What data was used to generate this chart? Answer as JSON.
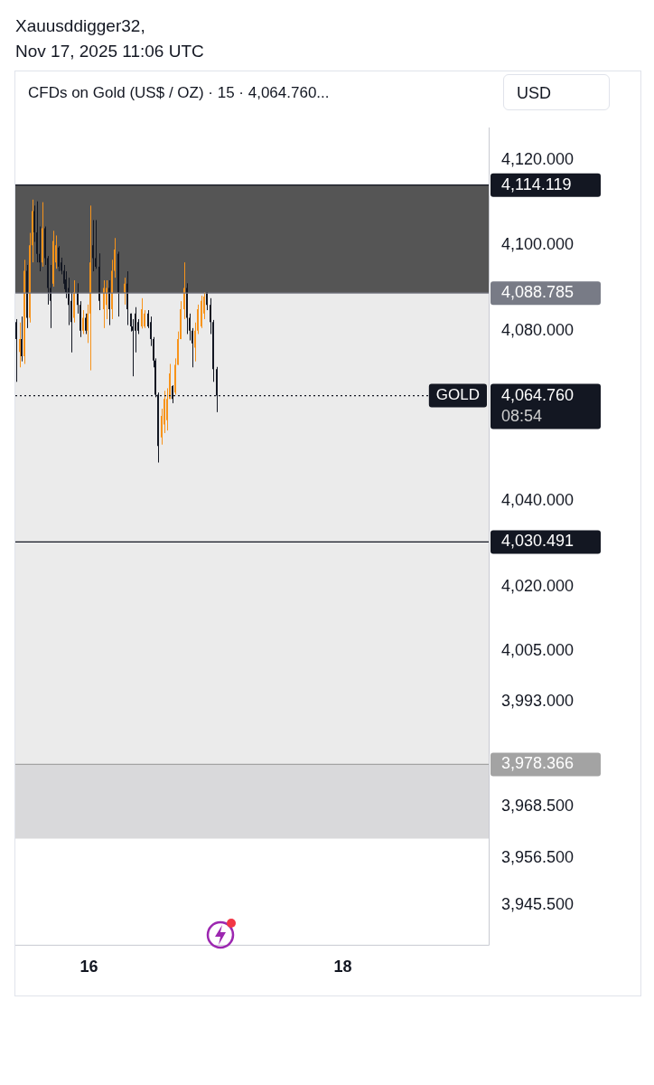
{
  "chart_data": {
    "type": "candlestick",
    "title": "CFDs on Gold (US$ / OZ) · 15 · 4,064.760...",
    "annotations": [
      "Xauusddigger32,",
      "Nov 17, 2025 11:06 UTC",
      "USD",
      "08:54",
      {
        "text": "GOLD",
        "y": 4064.76
      }
    ],
    "x": [
      15.427,
      15.455,
      15.469,
      15.49,
      15.51,
      15.531,
      15.552,
      15.573,
      15.594,
      15.615,
      15.636,
      15.657,
      15.678,
      15.699,
      15.72,
      15.741,
      15.762,
      15.783,
      15.804,
      15.818,
      15.839,
      15.86,
      15.881,
      15.909,
      15.93,
      15.951,
      15.972,
      15.993,
      16.014,
      16.035,
      16.056,
      16.084,
      16.119,
      16.14,
      16.161,
      16.182,
      16.203,
      16.231,
      16.28,
      16.301,
      16.329,
      16.343,
      16.364,
      16.385,
      16.42,
      16.441,
      16.469,
      16.49,
      16.51,
      16.524,
      16.545,
      16.573,
      16.594,
      16.615,
      16.636,
      16.657,
      16.678,
      16.699,
      16.72,
      16.748,
      16.776,
      16.797,
      16.818,
      16.839,
      16.86,
      16.888,
      16.909,
      16.93,
      16.958,
      16.979,
      17.007
    ],
    "ohlc": [
      [
        4082,
        4082.7,
        4068,
        4078
      ],
      [
        4075,
        4081.9,
        4071.4,
        4078
      ],
      [
        4078,
        4083.3,
        4072.8,
        4074
      ],
      [
        4074,
        4096.6,
        4072.2,
        4094
      ],
      [
        4094,
        4095.4,
        4080.6,
        4083
      ],
      [
        4083,
        4102.9,
        4081.9,
        4100
      ],
      [
        4100,
        4110.7,
        4096,
        4108
      ],
      [
        4108,
        4109.3,
        4100.8,
        4103
      ],
      [
        4103,
        4110.3,
        4096,
        4098
      ],
      [
        4098,
        4104.4,
        4093.9,
        4096
      ],
      [
        4096,
        4110.1,
        4095,
        4104
      ],
      [
        4104,
        4104.4,
        4095.4,
        4097
      ],
      [
        4097,
        4097.5,
        4086.1,
        4090
      ],
      [
        4090,
        4095.4,
        4080.6,
        4087
      ],
      [
        4091,
        4103.4,
        4090.3,
        4101
      ],
      [
        4096,
        4102.3,
        4094.5,
        4100
      ],
      [
        4099.5,
        4099.8,
        4093.9,
        4095
      ],
      [
        4096,
        4097.1,
        4093.2,
        4094
      ],
      [
        4094,
        4095.4,
        4089.7,
        4091
      ],
      [
        4092,
        4093.9,
        4087.6,
        4089
      ],
      [
        4090,
        4092.4,
        4081.3,
        4086
      ],
      [
        4087,
        4089,
        4074.9,
        4082
      ],
      [
        4083,
        4091.8,
        4081.9,
        4089
      ],
      [
        4089,
        4091.1,
        4084,
        4086
      ],
      [
        4086,
        4086.9,
        4078.5,
        4080
      ],
      [
        4080,
        4084.8,
        4079.2,
        4083
      ],
      [
        4083,
        4084,
        4079.2,
        4080
      ],
      [
        4080,
        4086.1,
        4077.1,
        4084
      ],
      [
        4084,
        4109.3,
        4070.7,
        4096
      ],
      [
        4100,
        4105.9,
        4093.9,
        4097
      ],
      [
        4097,
        4105.9,
        4094.5,
        4095
      ],
      [
        4095,
        4098.1,
        4084.8,
        4087
      ],
      [
        4085,
        4091.8,
        4080.6,
        4090
      ],
      [
        4086,
        4091.8,
        4082.7,
        4090
      ],
      [
        4090,
        4091.8,
        4081.3,
        4085
      ],
      [
        4085,
        4096.6,
        4082.7,
        4094
      ],
      [
        4094,
        4101.7,
        4092.4,
        4099
      ],
      [
        4098,
        4098.5,
        4083.3,
        4089
      ],
      [
        4089,
        4092.4,
        4086.1,
        4091
      ],
      [
        4091,
        4093.9,
        4081.3,
        4085
      ],
      [
        4084,
        4084,
        4079.8,
        4081
      ],
      [
        4081,
        4082.7,
        4069.3,
        4080
      ],
      [
        4084,
        4085.5,
        4074.9,
        4080
      ],
      [
        4082,
        4082.7,
        4079.2,
        4080
      ],
      [
        4081,
        4087.6,
        4080.5,
        4085
      ],
      [
        4081,
        4084.8,
        4080.6,
        4084
      ],
      [
        4084,
        4084.8,
        4080.6,
        4081
      ],
      [
        4082,
        4083.3,
        4076.4,
        4078
      ],
      [
        4078,
        4078.5,
        4071.4,
        4073
      ],
      [
        4073,
        4073.5,
        4064.4,
        4065
      ],
      [
        4065,
        4065.5,
        4049.1,
        4053
      ],
      [
        4055,
        4061.7,
        4053.3,
        4060
      ],
      [
        4058,
        4065.9,
        4056,
        4064
      ],
      [
        4059,
        4066.5,
        4056.6,
        4064
      ],
      [
        4064,
        4072.2,
        4064,
        4070
      ],
      [
        4067,
        4067.2,
        4063,
        4064
      ],
      [
        4065.5,
        4073.5,
        4065,
        4072
      ],
      [
        4072,
        4079.8,
        4072,
        4078
      ],
      [
        4078,
        4086.9,
        4078,
        4085
      ],
      [
        4085,
        4096,
        4082.7,
        4090
      ],
      [
        4090,
        4091.1,
        4079.2,
        4083
      ],
      [
        4083,
        4084,
        4077.7,
        4080
      ],
      [
        4080,
        4080.6,
        4071.4,
        4077
      ],
      [
        4076,
        4081.9,
        4072.8,
        4080
      ],
      [
        4080,
        4086.1,
        4079.2,
        4085
      ],
      [
        4081,
        4088.2,
        4080.6,
        4087
      ],
      [
        4084,
        4089,
        4082.7,
        4088
      ],
      [
        4089,
        4089,
        4084.8,
        4086
      ],
      [
        4086,
        4087.6,
        4079.2,
        4082
      ],
      [
        4082,
        4082.5,
        4068,
        4071
      ],
      [
        4071,
        4071.5,
        4060.9,
        4064.76
      ]
    ],
    "colors": [
      "#131722",
      "#f7931a",
      "#131722",
      "#f7931a",
      "#131722",
      "#f7931a",
      "#f7931a",
      "#131722",
      "#131722",
      "#131722",
      "#f7931a",
      "#131722",
      "#131722",
      "#131722",
      "#f7931a",
      "#f7931a",
      "#131722",
      "#131722",
      "#131722",
      "#131722",
      "#131722",
      "#131722",
      "#f7931a",
      "#131722",
      "#131722",
      "#f7931a",
      "#131722",
      "#f7931a",
      "#f7931a",
      "#131722",
      "#131722",
      "#131722",
      "#f7931a",
      "#f7931a",
      "#131722",
      "#f7931a",
      "#f7931a",
      "#131722",
      "#f7931a",
      "#131722",
      "#131722",
      "#131722",
      "#131722",
      "#131722",
      "#f7931a",
      "#f7931a",
      "#131722",
      "#131722",
      "#131722",
      "#131722",
      "#131722",
      "#f7931a",
      "#f7931a",
      "#f7931a",
      "#f7931a",
      "#131722",
      "#f7931a",
      "#f7931a",
      "#f7931a",
      "#f7931a",
      "#131722",
      "#131722",
      "#131722",
      "#f7931a",
      "#f7931a",
      "#f7931a",
      "#f7931a",
      "#131722",
      "#131722",
      "#131722",
      "#131722"
    ],
    "xlim": [
      15.42,
      19.15
    ],
    "xticks": [
      16,
      18
    ],
    "ylim": [
      3936,
      4127.6
    ],
    "yticks": [
      {
        "value": 4120,
        "label": "4,120.000"
      },
      {
        "value": 4100,
        "label": "4,100.000"
      },
      {
        "value": 4080,
        "label": "4,080.000"
      },
      {
        "value": 4040,
        "label": "4,040.000"
      },
      {
        "value": 4020,
        "label": "4,020.000"
      },
      {
        "value": 4005,
        "label": "4,005.000"
      },
      {
        "value": 3993,
        "label": "3,993.000"
      },
      {
        "value": 3968.5,
        "label": "3,968.500"
      },
      {
        "value": 3956.5,
        "label": "3,956.500"
      },
      {
        "value": 3945.5,
        "label": "3,945.500"
      }
    ],
    "bands": [
      {
        "axis": "y",
        "from": 4088.785,
        "to": 4114.119,
        "color": "#555555"
      },
      {
        "axis": "y",
        "from": 3978.366,
        "to": 4088.785,
        "color": "#ebebeb"
      },
      {
        "axis": "y",
        "from": 3961,
        "to": 3978.366,
        "color": "#d9d9db"
      }
    ],
    "ref_lines": [
      {
        "axis": "y",
        "value": 4114.119,
        "label": "4,114.119",
        "color": "#131722",
        "line_style": "solid"
      },
      {
        "axis": "y",
        "value": 4088.785,
        "label": "4,088.785",
        "color": "#787b86",
        "line_style": "solid"
      },
      {
        "axis": "y",
        "value": 4064.76,
        "label": "4,064.760",
        "color": "#131722",
        "line_style": "dotted"
      },
      {
        "axis": "y",
        "value": 4030.491,
        "label": "4,030.491",
        "color": "#131722",
        "line_style": "solid"
      },
      {
        "axis": "y",
        "value": 3978.366,
        "label": "3,978.366",
        "color": "#a3a3a3",
        "line_style": "solid"
      }
    ]
  }
}
